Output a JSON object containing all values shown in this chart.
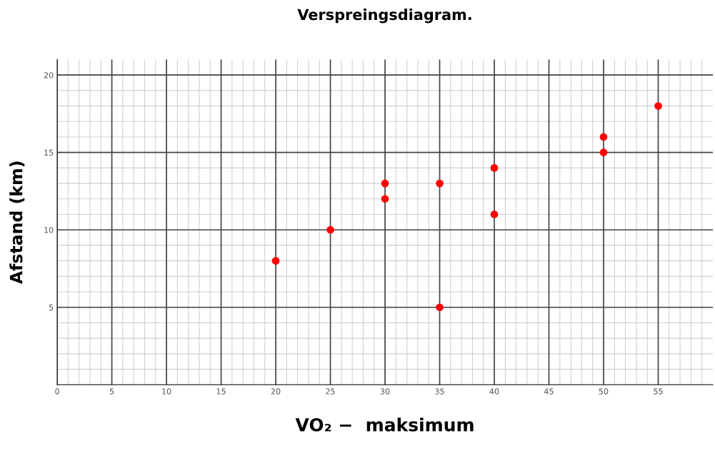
{
  "chart_data": {
    "type": "scatter",
    "title": "Verspreingsdiagram.",
    "xlabel": "VO₂ −  maksimum",
    "ylabel": "Afstand (km)",
    "x": [
      20,
      25,
      30,
      30,
      35,
      35,
      40,
      40,
      50,
      50,
      55
    ],
    "series": [
      {
        "color": "#ff0000",
        "values": [
          8,
          10,
          13,
          12,
          13,
          5,
          14,
          11,
          16,
          15,
          18
        ]
      }
    ],
    "xlim": [
      0,
      60
    ],
    "ylim": [
      0,
      21
    ],
    "xticks": [
      0,
      5,
      10,
      15,
      20,
      25,
      30,
      35,
      40,
      45,
      50,
      55
    ],
    "yticks": [
      5,
      10,
      15,
      20
    ],
    "grid": true,
    "marker": "circle"
  }
}
